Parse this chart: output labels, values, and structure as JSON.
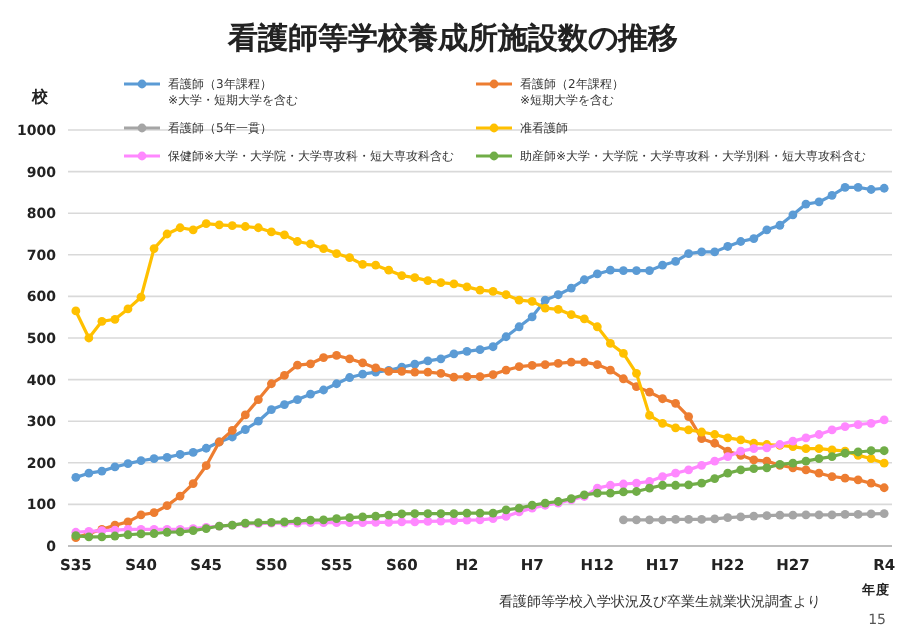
{
  "chart_data": {
    "type": "line",
    "title": "看護師等学校養成所施設数の推移",
    "ylabel": "校",
    "xlabel": "年度",
    "annotations": [
      "看護師等学校入学状況及び卒業生就業状況調査より",
      "15"
    ],
    "categories": [
      "S35",
      null,
      null,
      null,
      null,
      "S40",
      null,
      null,
      null,
      null,
      "S45",
      null,
      null,
      null,
      null,
      "S50",
      null,
      null,
      null,
      null,
      "S55",
      null,
      null,
      null,
      null,
      "S60",
      null,
      null,
      null,
      null,
      "H2",
      null,
      null,
      null,
      null,
      "H7",
      null,
      null,
      null,
      null,
      "H12",
      null,
      null,
      null,
      null,
      "H17",
      null,
      null,
      null,
      null,
      "H22",
      null,
      null,
      null,
      null,
      "H27",
      null,
      null,
      null,
      null,
      null,
      null,
      "R4"
    ],
    "ylim": [
      0,
      1000
    ],
    "yticks": [
      0,
      100,
      200,
      300,
      400,
      500,
      600,
      700,
      800,
      900,
      1000
    ],
    "grid": "y",
    "legend": "top",
    "marker": "circle",
    "line_style": "solid",
    "series": [
      {
        "name": "看護師（3年課程）\n※大学・短期大学を含む",
        "color": "#5b9bd5",
        "values": [
          165,
          175,
          180,
          190,
          198,
          205,
          210,
          213,
          220,
          225,
          235,
          250,
          262,
          280,
          300,
          328,
          340,
          352,
          365,
          375,
          390,
          405,
          413,
          418,
          422,
          430,
          437,
          445,
          450,
          462,
          468,
          472,
          479,
          503,
          527,
          551,
          591,
          604,
          620,
          640,
          654,
          663,
          662,
          662,
          662,
          675,
          684,
          703,
          707,
          707,
          720,
          732,
          739,
          760,
          771,
          796,
          822,
          827,
          843,
          862,
          862,
          857,
          860
        ]
      },
      {
        "name": "看護師（2年課程）\n※短期大学を含む",
        "color": "#ed7d31",
        "values": [
          20,
          30,
          40,
          50,
          58,
          75,
          80,
          97,
          120,
          150,
          193,
          250,
          278,
          315,
          352,
          390,
          410,
          435,
          438,
          453,
          458,
          450,
          440,
          428,
          420,
          420,
          418,
          418,
          415,
          406,
          407,
          407,
          412,
          423,
          431,
          434,
          436,
          439,
          442,
          442,
          436,
          423,
          402,
          383,
          370,
          354,
          343,
          311,
          258,
          247,
          228,
          218,
          207,
          204,
          194,
          188,
          183,
          175,
          167,
          163,
          159,
          151,
          140
        ]
      },
      {
        "name": "看護師（5年一貫）",
        "color": "#a5a5a5",
        "values": [
          null,
          null,
          null,
          null,
          null,
          null,
          null,
          null,
          null,
          null,
          null,
          null,
          null,
          null,
          null,
          null,
          null,
          null,
          null,
          null,
          null,
          null,
          null,
          null,
          null,
          null,
          null,
          null,
          null,
          null,
          null,
          null,
          null,
          null,
          null,
          null,
          null,
          null,
          null,
          null,
          null,
          null,
          63,
          63,
          63,
          63,
          64,
          64,
          64,
          65,
          68,
          70,
          72,
          73,
          74,
          74,
          75,
          75,
          75,
          76,
          76,
          77,
          78
        ]
      },
      {
        "name": "准看護師",
        "color": "#ffc000",
        "values": [
          565,
          500,
          540,
          545,
          570,
          598,
          715,
          750,
          765,
          760,
          775,
          772,
          770,
          768,
          765,
          755,
          748,
          732,
          726,
          715,
          703,
          693,
          677,
          675,
          663,
          650,
          645,
          638,
          633,
          630,
          623,
          615,
          612,
          604,
          591,
          588,
          572,
          569,
          556,
          546,
          527,
          487,
          463,
          415,
          314,
          295,
          284,
          279,
          274,
          268,
          260,
          255,
          247,
          244,
          242,
          239,
          234,
          234,
          231,
          228,
          218,
          210,
          199
        ]
      },
      {
        "name": "保健師※大学・大学院・大学専攻科・短大専攻科含む",
        "color": "#ff88ff",
        "values": [
          33,
          35,
          37,
          38,
          40,
          40,
          40,
          40,
          40,
          42,
          45,
          48,
          50,
          53,
          54,
          55,
          55,
          55,
          56,
          56,
          56,
          56,
          56,
          57,
          57,
          58,
          58,
          59,
          60,
          61,
          62,
          63,
          66,
          71,
          82,
          91,
          98,
          103,
          111,
          119,
          139,
          146,
          149,
          151,
          155,
          167,
          175,
          183,
          194,
          204,
          215,
          228,
          234,
          236,
          244,
          252,
          260,
          268,
          279,
          287,
          292,
          295,
          303
        ]
      },
      {
        "name": "助産師※大学・大学院・大学専攻科・大学別科・短大専攻科含む",
        "color": "#70ad47",
        "values": [
          25,
          22,
          22,
          24,
          27,
          29,
          30,
          33,
          34,
          37,
          42,
          48,
          50,
          55,
          56,
          57,
          58,
          60,
          62,
          63,
          66,
          68,
          70,
          72,
          74,
          77,
          78,
          78,
          78,
          78,
          79,
          79,
          79,
          87,
          91,
          98,
          103,
          107,
          114,
          123,
          127,
          127,
          130,
          131,
          139,
          146,
          146,
          147,
          151,
          162,
          175,
          183,
          186,
          188,
          196,
          199,
          204,
          210,
          215,
          223,
          226,
          229,
          229
        ]
      }
    ]
  }
}
